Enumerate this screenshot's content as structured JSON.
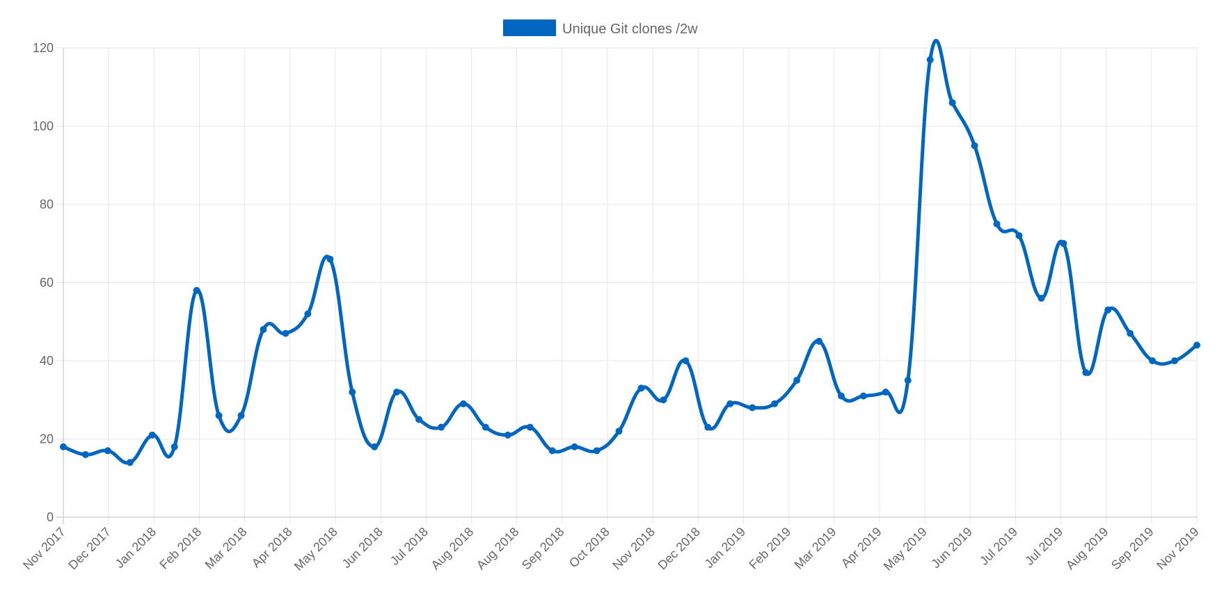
{
  "chart_data": {
    "type": "line",
    "legend": {
      "placement": "top-center",
      "label": "Unique Git clones /2w",
      "color": "#0066c0"
    },
    "grid": true,
    "ylim": [
      0,
      120
    ],
    "yticks": [
      0,
      20,
      40,
      60,
      80,
      100,
      120
    ],
    "xticks": [
      "Nov 2017",
      "Dec 2017",
      "Jan 2018",
      "Feb 2018",
      "Mar 2018",
      "Apr 2018",
      "May 2018",
      "Jun 2018",
      "Jul 2018",
      "Aug 2018",
      "Aug 2018",
      "Sep 2018",
      "Oct 2018",
      "Nov 2018",
      "Dec 2018",
      "Jan 2019",
      "Feb 2019",
      "Mar 2019",
      "Apr 2019",
      "May 2019",
      "Jun 2019",
      "Jul 2019",
      "Jul 2019",
      "Aug 2019",
      "Sep 2019",
      "Nov 2019"
    ],
    "series": [
      {
        "name": "Unique Git clones /2w",
        "color": "#0066c0",
        "values": [
          18,
          16,
          17,
          14,
          21,
          18,
          58,
          26,
          26,
          48,
          47,
          52,
          66,
          32,
          18,
          32,
          25,
          23,
          29,
          23,
          21,
          23,
          17,
          18,
          17,
          22,
          33,
          30,
          40,
          23,
          29,
          28,
          29,
          35,
          45,
          31,
          31,
          32,
          35,
          117,
          106,
          95,
          75,
          72,
          56,
          70,
          37,
          53,
          47,
          40,
          40,
          44
        ]
      }
    ]
  }
}
